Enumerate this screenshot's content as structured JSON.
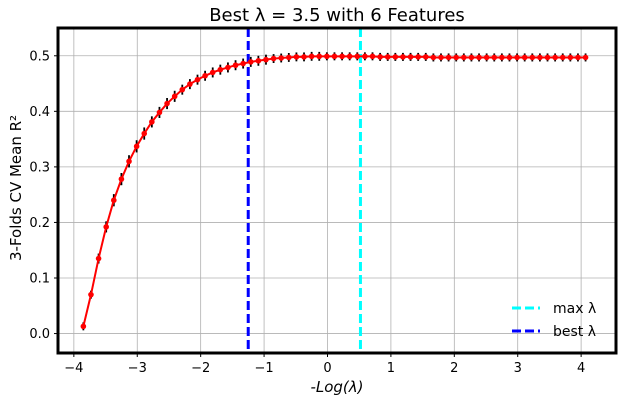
{
  "chart_data": {
    "type": "line",
    "title": "Best λ = 3.5 with 6 Features",
    "xlabel": "-Log(λ)",
    "ylabel": "3-Folds CV Mean R²",
    "xlim": [
      -4.25,
      4.55
    ],
    "ylim": [
      -0.035,
      0.55
    ],
    "xticks": [
      "−4",
      "−3",
      "−2",
      "−1",
      "0",
      "1",
      "2",
      "3",
      "4"
    ],
    "yticks": [
      "0.0",
      "0.1",
      "0.2",
      "0.3",
      "0.4",
      "0.5"
    ],
    "grid": true,
    "legend_position": "lower-right",
    "vlines": [
      {
        "name": "max λ",
        "x": 0.52,
        "color": "#00ffff"
      },
      {
        "name": "best λ",
        "x": -1.25,
        "color": "#0000ff"
      }
    ],
    "series": [
      {
        "color": "#ff0000",
        "errorbar_color": "#000000",
        "x": [
          -3.85,
          -3.73,
          -3.61,
          -3.49,
          -3.37,
          -3.25,
          -3.13,
          -3.01,
          -2.89,
          -2.77,
          -2.65,
          -2.53,
          -2.41,
          -2.29,
          -2.17,
          -2.05,
          -1.93,
          -1.81,
          -1.69,
          -1.57,
          -1.45,
          -1.33,
          -1.21,
          -1.09,
          -0.97,
          -0.85,
          -0.73,
          -0.61,
          -0.49,
          -0.37,
          -0.25,
          -0.13,
          -0.01,
          0.11,
          0.23,
          0.35,
          0.47,
          0.59,
          0.71,
          0.83,
          0.95,
          1.07,
          1.19,
          1.31,
          1.43,
          1.55,
          1.67,
          1.79,
          1.91,
          2.03,
          2.15,
          2.27,
          2.39,
          2.51,
          2.63,
          2.75,
          2.87,
          2.99,
          3.11,
          3.23,
          3.35,
          3.47,
          3.59,
          3.71,
          3.83,
          3.95,
          4.07
        ],
        "y": [
          0.013,
          0.07,
          0.135,
          0.192,
          0.24,
          0.278,
          0.31,
          0.337,
          0.36,
          0.381,
          0.398,
          0.414,
          0.427,
          0.439,
          0.449,
          0.457,
          0.464,
          0.47,
          0.475,
          0.479,
          0.483,
          0.486,
          0.489,
          0.491,
          0.493,
          0.495,
          0.496,
          0.497,
          0.498,
          0.498,
          0.499,
          0.499,
          0.499,
          0.499,
          0.499,
          0.499,
          0.499,
          0.499,
          0.499,
          0.498,
          0.498,
          0.498,
          0.498,
          0.498,
          0.498,
          0.498,
          0.497,
          0.497,
          0.497,
          0.497,
          0.497,
          0.497,
          0.497,
          0.497,
          0.497,
          0.497,
          0.497,
          0.497,
          0.497,
          0.497,
          0.497,
          0.497,
          0.497,
          0.497,
          0.497,
          0.497,
          0.497
        ],
        "err": [
          0.004,
          0.007,
          0.009,
          0.01,
          0.011,
          0.011,
          0.011,
          0.011,
          0.011,
          0.01,
          0.01,
          0.01,
          0.01,
          0.009,
          0.009,
          0.009,
          0.009,
          0.009,
          0.009,
          0.009,
          0.009,
          0.009,
          0.009,
          0.009,
          0.009,
          0.008,
          0.008,
          0.008,
          0.008,
          0.008,
          0.008,
          0.008,
          0.007,
          0.007,
          0.007,
          0.006,
          0.006,
          0.005,
          0.005,
          0.004,
          0.004,
          0.003,
          0.003,
          0.003,
          0.002,
          0.002,
          0.002,
          0.002,
          0.001,
          0.001,
          0.001,
          0.001,
          0.001,
          0.001,
          0.001,
          0.001,
          0.001,
          0.001,
          0.001,
          0.001,
          0.001,
          0.001,
          0.001,
          0.001,
          0.001,
          0.001,
          0.001
        ]
      }
    ]
  }
}
